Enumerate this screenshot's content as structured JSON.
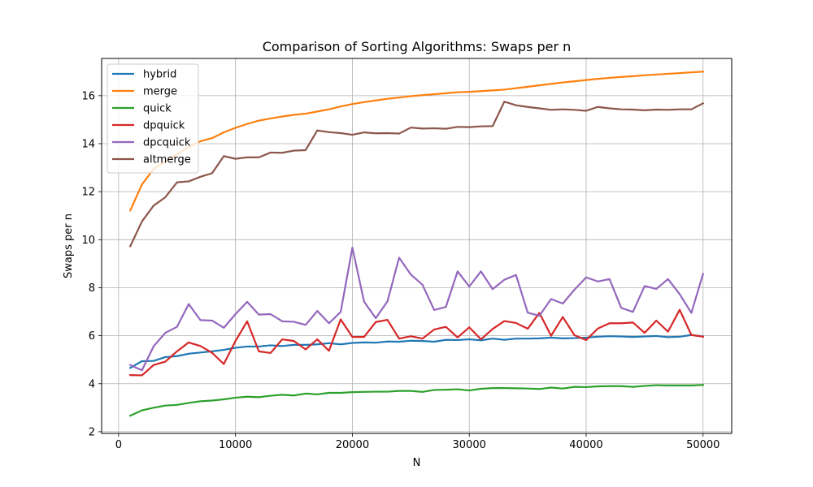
{
  "chart_data": {
    "type": "line",
    "title": "Comparison of Sorting Algorithms: Swaps per n",
    "xlabel": "N",
    "ylabel": "Swaps per n",
    "xlim": [
      -1450,
      52450
    ],
    "ylim": [
      1.93,
      17.55
    ],
    "xticks": [
      0,
      10000,
      20000,
      30000,
      40000,
      50000
    ],
    "yticks": [
      2,
      4,
      6,
      8,
      10,
      12,
      14,
      16
    ],
    "grid": true,
    "legend_position": "top-left",
    "x": [
      1000,
      2000,
      3000,
      4000,
      5000,
      6000,
      7000,
      8000,
      9000,
      10000,
      11000,
      12000,
      13000,
      14000,
      15000,
      16000,
      17000,
      18000,
      19000,
      20000,
      21000,
      22000,
      23000,
      24000,
      25000,
      26000,
      27000,
      28000,
      29000,
      30000,
      31000,
      32000,
      33000,
      34000,
      35000,
      36000,
      37000,
      38000,
      39000,
      40000,
      41000,
      42000,
      43000,
      44000,
      45000,
      46000,
      47000,
      48000,
      49000,
      50000
    ],
    "series": [
      {
        "name": "hybrid",
        "color": "#1f77b4",
        "values": [
          4.66,
          4.94,
          4.95,
          5.11,
          5.15,
          5.25,
          5.3,
          5.35,
          5.41,
          5.5,
          5.55,
          5.55,
          5.6,
          5.57,
          5.62,
          5.62,
          5.64,
          5.69,
          5.64,
          5.7,
          5.72,
          5.71,
          5.76,
          5.75,
          5.79,
          5.78,
          5.75,
          5.83,
          5.82,
          5.85,
          5.81,
          5.88,
          5.83,
          5.88,
          5.88,
          5.89,
          5.92,
          5.89,
          5.9,
          5.92,
          5.96,
          5.98,
          5.97,
          5.95,
          5.97,
          5.99,
          5.94,
          5.96,
          6.03,
          5.97
        ]
      },
      {
        "name": "merge",
        "color": "#ff7f0e",
        "values": [
          11.22,
          12.3,
          12.95,
          13.26,
          13.56,
          13.86,
          14.1,
          14.23,
          14.47,
          14.66,
          14.82,
          14.96,
          15.05,
          15.13,
          15.2,
          15.25,
          15.34,
          15.43,
          15.55,
          15.65,
          15.73,
          15.8,
          15.87,
          15.92,
          15.98,
          16.02,
          16.06,
          16.1,
          16.14,
          16.16,
          16.19,
          16.22,
          16.25,
          16.31,
          16.37,
          16.43,
          16.49,
          16.55,
          16.6,
          16.65,
          16.7,
          16.74,
          16.78,
          16.81,
          16.85,
          16.88,
          16.91,
          16.94,
          16.97,
          17.0
        ]
      },
      {
        "name": "quick",
        "color": "#2ca02c",
        "values": [
          2.67,
          2.89,
          3.0,
          3.09,
          3.12,
          3.2,
          3.27,
          3.3,
          3.35,
          3.42,
          3.46,
          3.44,
          3.5,
          3.54,
          3.51,
          3.59,
          3.56,
          3.62,
          3.62,
          3.65,
          3.66,
          3.67,
          3.67,
          3.7,
          3.7,
          3.66,
          3.74,
          3.75,
          3.77,
          3.72,
          3.79,
          3.82,
          3.82,
          3.81,
          3.8,
          3.78,
          3.84,
          3.8,
          3.87,
          3.86,
          3.89,
          3.9,
          3.9,
          3.87,
          3.91,
          3.94,
          3.93,
          3.93,
          3.93,
          3.95
        ]
      },
      {
        "name": "dpquick",
        "color": "#d62728",
        "values": [
          4.36,
          4.35,
          4.78,
          4.92,
          5.35,
          5.72,
          5.57,
          5.29,
          4.82,
          5.78,
          6.6,
          5.35,
          5.28,
          5.85,
          5.78,
          5.43,
          5.85,
          5.37,
          6.68,
          5.95,
          5.95,
          6.57,
          6.66,
          5.88,
          5.98,
          5.88,
          6.26,
          6.37,
          5.93,
          6.35,
          5.85,
          6.28,
          6.61,
          6.53,
          6.29,
          6.95,
          6.0,
          6.78,
          6.02,
          5.82,
          6.3,
          6.52,
          6.52,
          6.55,
          6.12,
          6.63,
          6.17,
          7.08,
          6.03,
          5.96
        ]
      },
      {
        "name": "dpcquick",
        "color": "#9467bd",
        "values": [
          4.78,
          4.56,
          5.56,
          6.12,
          6.37,
          7.32,
          6.65,
          6.63,
          6.33,
          6.9,
          7.41,
          6.88,
          6.9,
          6.6,
          6.58,
          6.45,
          7.03,
          6.52,
          6.99,
          9.67,
          7.42,
          6.73,
          7.43,
          9.25,
          8.55,
          8.12,
          7.07,
          7.2,
          8.68,
          8.05,
          8.68,
          7.94,
          8.33,
          8.53,
          6.96,
          6.83,
          7.53,
          7.34,
          7.92,
          8.43,
          8.26,
          8.36,
          7.16,
          6.99,
          8.07,
          7.95,
          8.36,
          7.73,
          6.95,
          8.58
        ]
      },
      {
        "name": "altmerge",
        "color": "#8c564b",
        "values": [
          9.73,
          10.76,
          11.42,
          11.77,
          12.39,
          12.43,
          12.62,
          12.77,
          13.48,
          13.37,
          13.43,
          13.43,
          13.63,
          13.62,
          13.71,
          13.73,
          14.55,
          14.48,
          14.44,
          14.37,
          14.47,
          14.43,
          14.44,
          14.42,
          14.67,
          14.63,
          14.64,
          14.62,
          14.7,
          14.69,
          14.72,
          14.73,
          15.75,
          15.6,
          15.53,
          15.47,
          15.41,
          15.43,
          15.41,
          15.37,
          15.53,
          15.47,
          15.43,
          15.42,
          15.39,
          15.42,
          15.41,
          15.43,
          15.43,
          15.68
        ]
      }
    ]
  }
}
